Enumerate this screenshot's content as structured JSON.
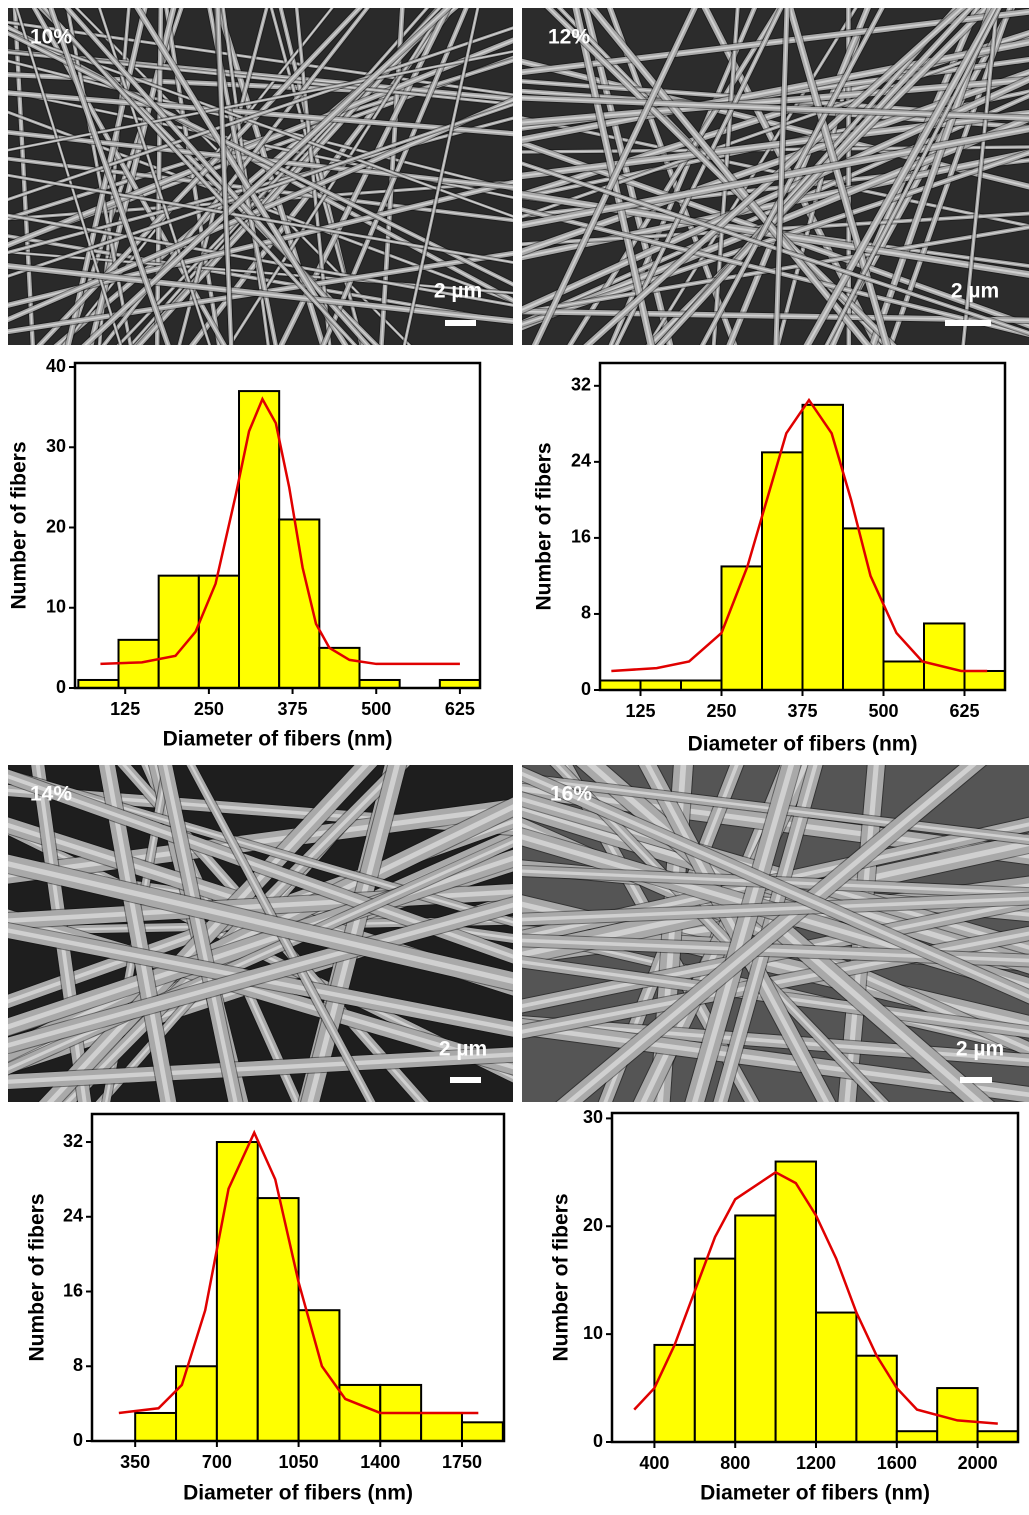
{
  "chart_data": [
    {
      "type": "histogram",
      "xlabel": "Diameter of fibers (nm)",
      "ylabel": "Number of fibers",
      "bins": [
        55,
        115,
        175,
        235,
        295,
        355,
        415,
        475,
        535,
        595,
        655
      ],
      "counts": [
        1,
        6,
        14,
        14,
        37,
        21,
        5,
        1,
        0,
        1
      ],
      "color": "#ffff00",
      "fit": {
        "color": "#e00000",
        "x": [
          88,
          150,
          200,
          230,
          260,
          290,
          310,
          330,
          350,
          370,
          390,
          410,
          430,
          460,
          500,
          625
        ],
        "y": [
          3,
          3.2,
          4,
          7,
          13,
          24,
          32,
          36,
          33,
          25,
          15,
          8,
          5,
          3.5,
          3,
          3
        ]
      },
      "xlim": [
        50,
        655
      ],
      "ylim": [
        0,
        40.5
      ],
      "xticks": [
        125,
        250,
        375,
        500,
        625
      ],
      "yticks": [
        0,
        10,
        20,
        30,
        40
      ]
    },
    {
      "type": "histogram",
      "xlabel": "Diameter of fibers (nm)",
      "ylabel": "Number of fibers",
      "bins": [
        62.5,
        125,
        187.5,
        250,
        312.5,
        375,
        437.5,
        500,
        562.5,
        625,
        687.5
      ],
      "counts": [
        1,
        1,
        1,
        13,
        25,
        30,
        17,
        3,
        7,
        2
      ],
      "color": "#ffff00",
      "fit": {
        "color": "#e00000",
        "x": [
          80,
          150,
          200,
          250,
          290,
          320,
          350,
          385,
          420,
          450,
          480,
          520,
          560,
          620,
          660
        ],
        "y": [
          2,
          2.3,
          3,
          6,
          13,
          20,
          27,
          30.5,
          27,
          20,
          12,
          6,
          3,
          2,
          2
        ]
      },
      "xlim": [
        62.5,
        687.5
      ],
      "ylim": [
        0,
        34.4
      ],
      "xticks": [
        125,
        250,
        375,
        500,
        625
      ],
      "yticks": [
        0,
        8,
        16,
        24,
        32
      ]
    },
    {
      "type": "histogram",
      "xlabel": "Diameter of fibers (nm)",
      "ylabel": "Number of fibers",
      "bins": [
        350,
        525,
        700,
        875,
        1050,
        1225,
        1400,
        1575,
        1750,
        1925
      ],
      "counts": [
        3,
        8,
        32,
        26,
        14,
        6,
        6,
        3,
        2
      ],
      "color": "#ffff00",
      "fit": {
        "color": "#e00000",
        "x": [
          280,
          450,
          550,
          650,
          750,
          860,
          950,
          1050,
          1150,
          1250,
          1400,
          1600,
          1820
        ],
        "y": [
          3,
          3.5,
          6,
          14,
          27,
          33,
          28,
          17,
          8,
          4.5,
          3,
          3,
          3
        ]
      },
      "xlim": [
        165,
        1930
      ],
      "ylim": [
        0,
        35
      ],
      "xticks": [
        350,
        700,
        1050,
        1400,
        1750
      ],
      "yticks": [
        0,
        8,
        16,
        24,
        32
      ]
    },
    {
      "type": "histogram",
      "xlabel": "Diameter of fibers (nm)",
      "ylabel": "Number of fibers",
      "bins": [
        400,
        600,
        800,
        1000,
        1200,
        1400,
        1600,
        1800,
        2000,
        2200
      ],
      "counts": [
        9,
        17,
        21,
        26,
        12,
        8,
        1,
        5,
        1
      ],
      "color": "#ffff00",
      "fit": {
        "color": "#e00000",
        "x": [
          300,
          400,
          500,
          600,
          700,
          800,
          1000,
          1100,
          1200,
          1300,
          1400,
          1500,
          1600,
          1700,
          1900,
          2100
        ],
        "y": [
          3,
          5,
          9,
          14,
          19,
          22.5,
          25,
          24,
          21,
          17,
          12,
          8,
          5,
          3,
          2,
          1.7
        ]
      },
      "xlim": [
        190,
        2200
      ],
      "ylim": [
        0,
        30.5
      ],
      "xticks": [
        400,
        800,
        1200,
        1600,
        2000
      ],
      "yticks": [
        0,
        10,
        20,
        30
      ]
    }
  ],
  "images": [
    {
      "label": "10%",
      "scale_bar": "2 µm"
    },
    {
      "label": "12%",
      "scale_bar": "2 µm"
    },
    {
      "label": "14%",
      "scale_bar": "2 µm"
    },
    {
      "label": "16%",
      "scale_bar": "2 µm"
    }
  ]
}
